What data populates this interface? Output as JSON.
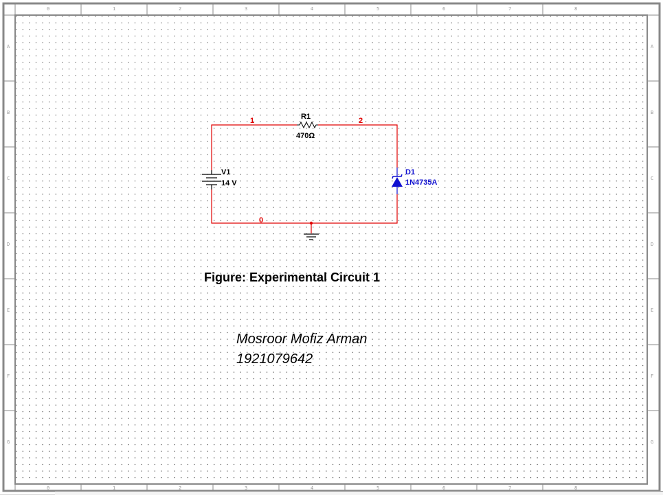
{
  "ruler": {
    "columns": [
      "0",
      "1",
      "2",
      "3",
      "4",
      "5",
      "6",
      "7",
      "8"
    ],
    "rows": [
      "A",
      "B",
      "C",
      "D",
      "E",
      "F",
      "G"
    ]
  },
  "components": {
    "resistor": {
      "ref": "R1",
      "value": "470Ω"
    },
    "source": {
      "ref": "V1",
      "value": "14 V"
    },
    "diode": {
      "ref": "D1",
      "value": "1N4735A"
    }
  },
  "nets": {
    "left_top": "1",
    "right_top": "2",
    "ground": "0"
  },
  "caption": "Figure: Experimental Circuit 1",
  "author": {
    "name": "Mosroor Mofiz Arman",
    "id": "1921079642"
  },
  "colors": {
    "wire": "#e00000",
    "diode": "#1010d0",
    "grid_dot": "#000000",
    "border": "#888888"
  }
}
